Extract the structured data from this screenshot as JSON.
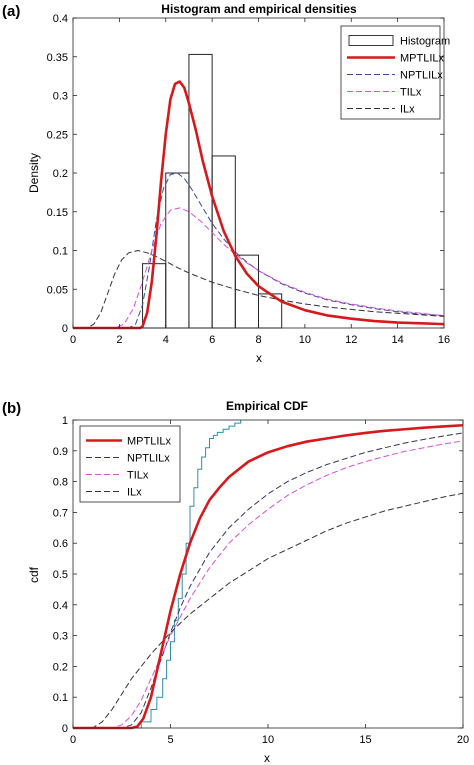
{
  "chart_data": [
    {
      "panel": "(a)",
      "type": "bar",
      "title": "Histogram and empirical densities",
      "xlabel": "x",
      "ylabel": "Density",
      "xlim": [
        0,
        16
      ],
      "ylim": [
        0,
        0.4
      ],
      "xticks": [
        0,
        2,
        4,
        6,
        8,
        10,
        12,
        14,
        16
      ],
      "yticks": [
        0,
        0.05,
        0.1,
        0.15,
        0.2,
        0.25,
        0.3,
        0.35,
        0.4
      ],
      "ytick_labels": [
        "0",
        "0.05",
        "0.1",
        "0.15",
        "0.2",
        "0.25",
        "0.3",
        "0.35",
        "0.4"
      ],
      "grid": false,
      "legend_position": "top-right",
      "histogram": {
        "name": "Histogram",
        "bins": [
          {
            "x0": 3,
            "x1": 4,
            "value": 0.083
          },
          {
            "x0": 4,
            "x1": 5,
            "value": 0.2
          },
          {
            "x0": 5,
            "x1": 6,
            "value": 0.353
          },
          {
            "x0": 6,
            "x1": 7,
            "value": 0.222
          },
          {
            "x0": 7,
            "x1": 8,
            "value": 0.094
          },
          {
            "x0": 8,
            "x1": 9,
            "value": 0.044
          }
        ]
      },
      "series": [
        {
          "name": "MPTLILx",
          "color": "#d7191c",
          "style": "solid",
          "x": [
            0,
            2.9,
            3.0,
            3.2,
            3.4,
            3.6,
            3.8,
            4.0,
            4.2,
            4.4,
            4.6,
            4.8,
            5.0,
            5.3,
            5.6,
            6.0,
            6.5,
            7.0,
            7.5,
            8.0,
            9.0,
            10.0,
            11.0,
            12.0,
            13.0,
            14.0,
            15.0,
            16.0
          ],
          "y": [
            0,
            0,
            0.002,
            0.02,
            0.06,
            0.12,
            0.19,
            0.25,
            0.295,
            0.315,
            0.318,
            0.31,
            0.29,
            0.255,
            0.215,
            0.17,
            0.125,
            0.093,
            0.07,
            0.054,
            0.034,
            0.023,
            0.016,
            0.012,
            0.009,
            0.007,
            0.006,
            0.005
          ]
        },
        {
          "name": "NPTLILx",
          "color": "#3a4aa0",
          "style": "dashed",
          "x": [
            0,
            2.4,
            2.7,
            3.0,
            3.3,
            3.6,
            3.9,
            4.2,
            4.5,
            4.8,
            5.1,
            5.5,
            6.0,
            6.5,
            7.0,
            7.5,
            8.0,
            9.0,
            10.0,
            11.0,
            12.0,
            13.0,
            14.0,
            15.0,
            16.0
          ],
          "y": [
            0,
            0,
            0.005,
            0.03,
            0.08,
            0.14,
            0.18,
            0.198,
            0.2,
            0.193,
            0.18,
            0.16,
            0.135,
            0.115,
            0.098,
            0.085,
            0.074,
            0.057,
            0.045,
            0.036,
            0.03,
            0.025,
            0.021,
            0.018,
            0.016
          ]
        },
        {
          "name": "TILx",
          "color": "#d84fd8",
          "style": "dashed",
          "x": [
            0,
            1.8,
            2.2,
            2.6,
            3.0,
            3.4,
            3.8,
            4.2,
            4.6,
            5.0,
            5.5,
            6.0,
            6.5,
            7.0,
            7.5,
            8.0,
            9.0,
            10.0,
            11.0,
            12.0,
            13.0,
            14.0,
            15.0,
            16.0
          ],
          "y": [
            0,
            0,
            0.005,
            0.025,
            0.06,
            0.1,
            0.135,
            0.152,
            0.155,
            0.15,
            0.138,
            0.123,
            0.108,
            0.095,
            0.084,
            0.074,
            0.058,
            0.046,
            0.037,
            0.031,
            0.026,
            0.022,
            0.019,
            0.016
          ]
        },
        {
          "name": "ILx",
          "color": "#333333",
          "style": "dashed",
          "x": [
            0,
            0.6,
            0.9,
            1.2,
            1.5,
            1.8,
            2.1,
            2.4,
            2.8,
            3.2,
            3.6,
            4.0,
            4.5,
            5.0,
            6.0,
            7.0,
            8.0,
            9.0,
            10.0,
            11.0,
            12.0,
            13.0,
            14.0,
            15.0,
            16.0
          ],
          "y": [
            0,
            0,
            0.005,
            0.02,
            0.045,
            0.07,
            0.088,
            0.097,
            0.1,
            0.097,
            0.092,
            0.086,
            0.078,
            0.071,
            0.059,
            0.05,
            0.042,
            0.036,
            0.031,
            0.027,
            0.024,
            0.021,
            0.019,
            0.017,
            0.015
          ]
        }
      ]
    },
    {
      "panel": "(b)",
      "type": "line",
      "title": "Empirical CDF",
      "xlabel": "x",
      "ylabel": "cdf",
      "xlim": [
        0,
        20
      ],
      "ylim": [
        0,
        1
      ],
      "xticks": [
        0,
        5,
        10,
        15,
        20
      ],
      "yticks": [
        0,
        0.1,
        0.2,
        0.3,
        0.4,
        0.5,
        0.6,
        0.7,
        0.8,
        0.9,
        1
      ],
      "ytick_labels": [
        "0",
        "0.1",
        "0.2",
        "0.3",
        "0.4",
        "0.5",
        "0.6",
        "0.7",
        "0.8",
        "0.9",
        "1"
      ],
      "grid": false,
      "legend_position": "top-left",
      "empirical": {
        "color": "#2f8fb0",
        "x": [
          3.0,
          3.5,
          4.0,
          4.3,
          4.6,
          4.8,
          5.0,
          5.2,
          5.4,
          5.6,
          5.8,
          6.0,
          6.2,
          6.4,
          6.6,
          6.8,
          7.0,
          7.2,
          7.4,
          7.7,
          8.0,
          8.3,
          8.6
        ],
        "y": [
          0,
          0.02,
          0.06,
          0.1,
          0.16,
          0.22,
          0.28,
          0.35,
          0.42,
          0.5,
          0.6,
          0.72,
          0.78,
          0.84,
          0.88,
          0.91,
          0.94,
          0.95,
          0.96,
          0.97,
          0.98,
          0.99,
          1.0
        ]
      },
      "series": [
        {
          "name": "MPTLILx",
          "color": "#d7191c",
          "style": "solid",
          "x": [
            0,
            3.0,
            3.3,
            3.6,
            4.0,
            4.5,
            5.0,
            5.5,
            6.0,
            6.5,
            7.0,
            7.5,
            8.0,
            9.0,
            10.0,
            11.0,
            12.0,
            13.0,
            14.0,
            15.0,
            16.0,
            17.0,
            18.0,
            19.0,
            20.0
          ],
          "y": [
            0,
            0,
            0.005,
            0.03,
            0.1,
            0.24,
            0.38,
            0.5,
            0.6,
            0.68,
            0.74,
            0.78,
            0.815,
            0.865,
            0.895,
            0.915,
            0.93,
            0.94,
            0.95,
            0.958,
            0.965,
            0.97,
            0.975,
            0.979,
            0.983
          ]
        },
        {
          "name": "NPTLILx",
          "color": "#333366",
          "style": "dashed",
          "x": [
            0,
            2.5,
            3.0,
            3.5,
            4.0,
            4.5,
            5.0,
            5.5,
            6.0,
            7.0,
            8.0,
            9.0,
            10.0,
            11.0,
            12.0,
            13.0,
            14.0,
            15.0,
            16.0,
            17.0,
            18.0,
            19.0,
            20.0
          ],
          "y": [
            0,
            0,
            0.01,
            0.05,
            0.13,
            0.22,
            0.31,
            0.39,
            0.46,
            0.57,
            0.65,
            0.71,
            0.76,
            0.8,
            0.83,
            0.855,
            0.875,
            0.895,
            0.91,
            0.925,
            0.937,
            0.948,
            0.958
          ]
        },
        {
          "name": "TILx",
          "color": "#d84fd8",
          "style": "dashed",
          "x": [
            0,
            2.0,
            2.5,
            3.0,
            3.5,
            4.0,
            4.5,
            5.0,
            5.5,
            6.0,
            7.0,
            8.0,
            9.0,
            10.0,
            11.0,
            12.0,
            13.0,
            14.0,
            15.0,
            16.0,
            17.0,
            18.0,
            19.0,
            20.0
          ],
          "y": [
            0,
            0,
            0.01,
            0.04,
            0.09,
            0.16,
            0.23,
            0.3,
            0.36,
            0.42,
            0.52,
            0.6,
            0.66,
            0.71,
            0.755,
            0.79,
            0.82,
            0.845,
            0.865,
            0.882,
            0.898,
            0.91,
            0.922,
            0.932
          ]
        },
        {
          "name": "ILx",
          "color": "#333333",
          "style": "dashed",
          "x": [
            0,
            1.0,
            1.5,
            2.0,
            2.5,
            3.0,
            3.5,
            4.0,
            5.0,
            6.0,
            7.0,
            8.0,
            9.0,
            10.0,
            11.0,
            12.0,
            13.0,
            14.0,
            15.0,
            16.0,
            17.0,
            18.0,
            19.0,
            20.0
          ],
          "y": [
            0,
            0,
            0.02,
            0.06,
            0.11,
            0.16,
            0.2,
            0.24,
            0.31,
            0.37,
            0.42,
            0.47,
            0.51,
            0.55,
            0.58,
            0.61,
            0.64,
            0.665,
            0.685,
            0.705,
            0.72,
            0.735,
            0.75,
            0.762
          ]
        }
      ]
    }
  ]
}
